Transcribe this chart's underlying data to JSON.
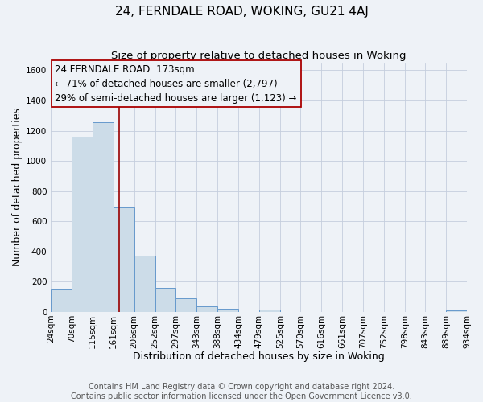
{
  "title": "24, FERNDALE ROAD, WOKING, GU21 4AJ",
  "subtitle": "Size of property relative to detached houses in Woking",
  "xlabel": "Distribution of detached houses by size in Woking",
  "ylabel": "Number of detached properties",
  "footer_lines": [
    "Contains HM Land Registry data © Crown copyright and database right 2024.",
    "Contains public sector information licensed under the Open Government Licence v3.0."
  ],
  "bin_edges": [
    24,
    70,
    115,
    161,
    206,
    252,
    297,
    343,
    388,
    434,
    479,
    525,
    570,
    616,
    661,
    707,
    752,
    798,
    843,
    889,
    934
  ],
  "bin_labels": [
    "24sqm",
    "70sqm",
    "115sqm",
    "161sqm",
    "206sqm",
    "252sqm",
    "297sqm",
    "343sqm",
    "388sqm",
    "434sqm",
    "479sqm",
    "525sqm",
    "570sqm",
    "616sqm",
    "661sqm",
    "707sqm",
    "752sqm",
    "798sqm",
    "843sqm",
    "889sqm",
    "934sqm"
  ],
  "bar_heights": [
    148,
    1163,
    1255,
    690,
    375,
    160,
    90,
    35,
    20,
    0,
    18,
    0,
    0,
    0,
    0,
    0,
    0,
    0,
    0,
    10
  ],
  "bar_color": "#ccdce8",
  "bar_edge_color": "#6699cc",
  "property_line_x": 173,
  "property_line_color": "#990000",
  "annotation_line1": "24 FERNDALE ROAD: 173sqm",
  "annotation_line2": "← 71% of detached houses are smaller (2,797)",
  "annotation_line3": "29% of semi-detached houses are larger (1,123) →",
  "ylim": [
    0,
    1650
  ],
  "yticks": [
    0,
    200,
    400,
    600,
    800,
    1000,
    1200,
    1400,
    1600
  ],
  "background_color": "#eef2f7",
  "grid_color": "#c5cedd",
  "title_fontsize": 11,
  "subtitle_fontsize": 9.5,
  "axis_label_fontsize": 9,
  "tick_fontsize": 7.5,
  "annotation_fontsize": 8.5,
  "footer_fontsize": 7
}
